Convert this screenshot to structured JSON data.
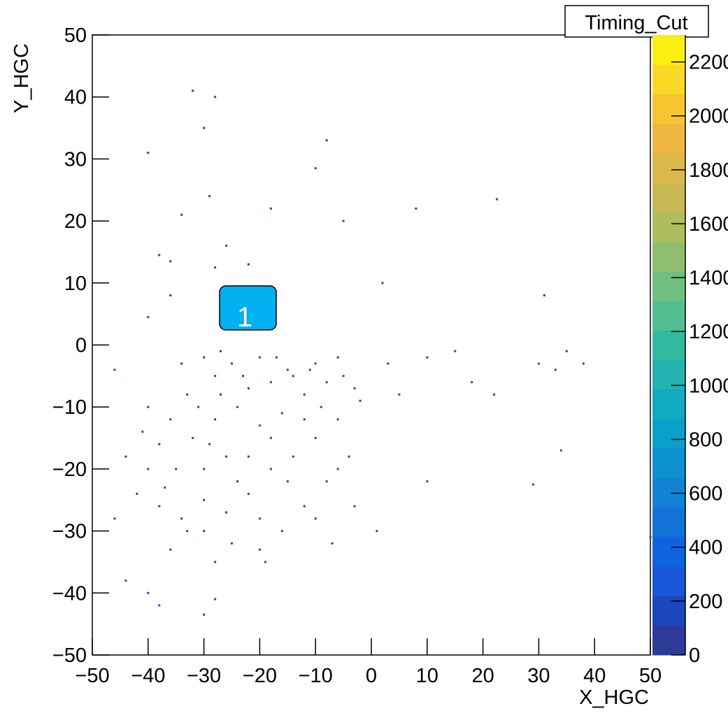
{
  "chart_data": {
    "type": "scatter",
    "title": "Timing_Cut",
    "x_label": "X_HGC",
    "y_label": "Y_HGC",
    "annotations": [
      "1"
    ],
    "color": "#2a43b4",
    "xlim": [
      -50,
      50
    ],
    "ylim": [
      -50,
      50
    ],
    "zlim": [
      0,
      2300
    ],
    "xticks": [
      {
        "value": -50,
        "label": "−50"
      },
      {
        "value": -40,
        "label": "−40"
      },
      {
        "value": -30,
        "label": "−30"
      },
      {
        "value": -20,
        "label": "−20"
      },
      {
        "value": -10,
        "label": "−10"
      },
      0,
      10,
      20,
      30,
      40,
      50
    ],
    "yticks": [
      {
        "value": -50,
        "label": "−50"
      },
      {
        "value": -40,
        "label": "−40"
      },
      {
        "value": -30,
        "label": "−30"
      },
      {
        "value": -20,
        "label": "−20"
      },
      {
        "value": -10,
        "label": "−10"
      },
      0,
      10,
      20,
      30,
      40,
      50
    ],
    "zticks": [
      0,
      200,
      400,
      600,
      800,
      1000,
      1200,
      1400,
      1600,
      1800,
      2000,
      2200
    ],
    "palette": [
      "#2c3a98",
      "#1c46bc",
      "#1957d8",
      "#0f63e0",
      "#1272d8",
      "#1282d4",
      "#0b92cf",
      "#0aa0c9",
      "#11aac0",
      "#23b2b0",
      "#33b9a0",
      "#52bd8f",
      "#70bf7f",
      "#90be6f",
      "#aebd5d",
      "#c8b955",
      "#dcb84a",
      "#efb63f",
      "#f6c530",
      "#f9d925",
      "#f9f00f"
    ],
    "x": [
      -30,
      -25,
      -20,
      -15,
      -10,
      -5,
      -3,
      -8,
      -12,
      -18,
      -22,
      -28,
      -33,
      -36,
      -38,
      -40,
      -42,
      -38,
      -34,
      -30,
      -26,
      -22,
      -18,
      -14,
      -10,
      -6,
      -4,
      -8,
      -12,
      -16,
      -20,
      -25,
      -30,
      -35,
      -32,
      -28,
      -24,
      -20,
      -16,
      -12,
      -26,
      -30,
      -22,
      -18,
      -14,
      -6,
      -2,
      -27,
      -34,
      -40,
      -44,
      -46,
      -36,
      -28,
      -10,
      -3,
      -6,
      -9,
      -31,
      -37,
      -24,
      -20,
      -15,
      -33,
      -27,
      -11,
      -17,
      -23,
      -29,
      -41,
      -32,
      -28,
      -30,
      -40,
      -8,
      -10,
      -29,
      22.5,
      -18,
      8,
      -5,
      -34,
      -26,
      -38,
      -36,
      -22,
      -28,
      10,
      15,
      18,
      22,
      30,
      33,
      38,
      35,
      -38,
      -30,
      -28,
      10,
      29,
      34,
      50,
      -19,
      -7,
      1,
      5,
      3,
      -40,
      2,
      -36,
      31,
      -46,
      -44,
      -40
    ],
    "y": [
      -2,
      -3,
      -2,
      -4,
      -3,
      -5,
      -7,
      -6,
      -8,
      -6,
      -7,
      -5,
      -8,
      -12,
      -16,
      -20,
      -24,
      -26,
      -28,
      -30,
      -27,
      -24,
      -20,
      -18,
      -15,
      -12,
      -18,
      -22,
      -26,
      -30,
      -33,
      -32,
      -25,
      -20,
      -15,
      -12,
      -10,
      -13,
      -11,
      -12,
      -18,
      -20,
      -18,
      -15,
      -5,
      -2,
      -9,
      -1,
      -3,
      -10,
      -18,
      -28,
      -33,
      -35,
      -28,
      -26,
      -20,
      -10,
      -10,
      -23,
      -22,
      -28,
      -22,
      -30,
      -8,
      -4,
      -2,
      -5,
      -16,
      -14,
      41,
      40,
      35,
      31,
      33,
      28.5,
      24,
      23.5,
      22,
      22,
      20,
      21,
      16,
      14.5,
      13.5,
      13,
      12.5,
      -2,
      -1,
      -6,
      -8,
      -3,
      -4,
      -3,
      -1,
      -42,
      -43.5,
      -41,
      -22,
      -22.5,
      -17,
      -31,
      -35,
      -32,
      -30,
      -8,
      -3,
      4.5,
      10,
      8,
      8,
      -4,
      -38,
      -40
    ]
  }
}
